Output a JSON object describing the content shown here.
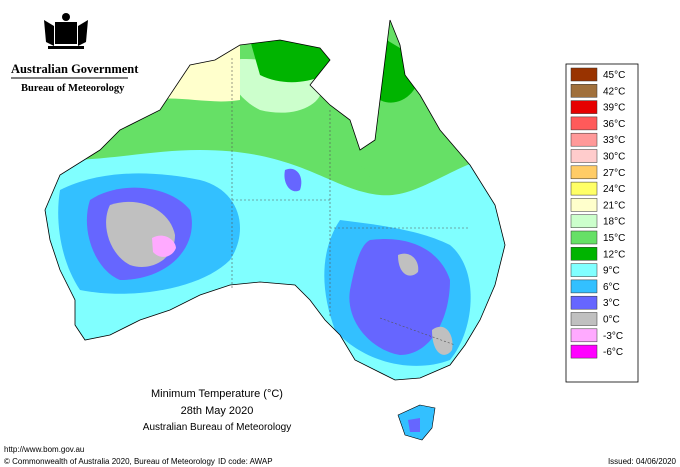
{
  "header": {
    "government": "Australian Government",
    "agency": "Bureau of Meteorology"
  },
  "legend": [
    {
      "label": "45°C",
      "color": "#993300"
    },
    {
      "label": "42°C",
      "color": "#a0703c"
    },
    {
      "label": "39°C",
      "color": "#e60000"
    },
    {
      "label": "36°C",
      "color": "#ff5a5a"
    },
    {
      "label": "33°C",
      "color": "#ff9999"
    },
    {
      "label": "30°C",
      "color": "#ffcccc"
    },
    {
      "label": "27°C",
      "color": "#ffcc66"
    },
    {
      "label": "24°C",
      "color": "#ffff66"
    },
    {
      "label": "21°C",
      "color": "#ffffcc"
    },
    {
      "label": "18°C",
      "color": "#ccffcc"
    },
    {
      "label": "15°C",
      "color": "#66e066"
    },
    {
      "label": "12°C",
      "color": "#00b400"
    },
    {
      "label": "9°C",
      "color": "#80ffff"
    },
    {
      "label": "6°C",
      "color": "#33c0ff"
    },
    {
      "label": "3°C",
      "color": "#6666ff"
    },
    {
      "label": "0°C",
      "color": "#c0c0c0"
    },
    {
      "label": "-3°C",
      "color": "#ffaaff"
    },
    {
      "label": "-6°C",
      "color": "#ff00ff"
    }
  ],
  "title": {
    "line1": "Minimum Temperature (°C)",
    "line2": "28th May 2020",
    "line3": "Australian Bureau of Meteorology"
  },
  "footer": {
    "url": "http://www.bom.gov.au",
    "copyright": "© Commonwealth of Australia 2020, Bureau of Meteorology",
    "id_code": "ID code: AWAP",
    "issued": "Issued: 04/06/2020"
  }
}
